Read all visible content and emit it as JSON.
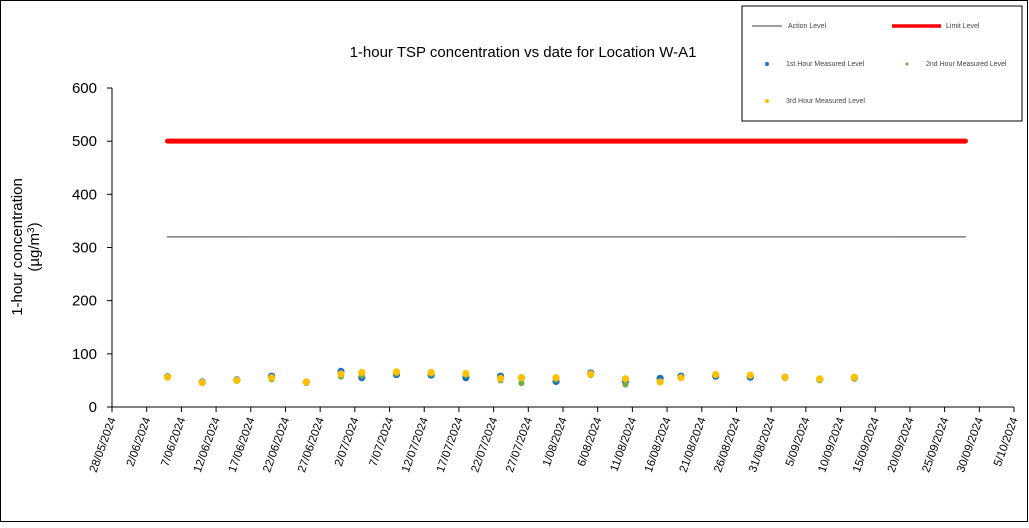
{
  "chart_data": {
    "type": "scatter",
    "title": "1-hour TSP concentration vs date for Location W-A1",
    "ylabel_line1": "1-hour concentration",
    "ylabel_line2": "(µg/m",
    "ylabel_sup": "3",
    "ylabel_close": ")",
    "ylim": [
      0,
      600
    ],
    "yticks": [
      "0",
      "100",
      "200",
      "300",
      "400",
      "500",
      "600"
    ],
    "xlim": [
      "2024-05-28",
      "2024-10-05"
    ],
    "xticks": [
      "28/05/2024",
      "2/06/2024",
      "7/06/2024",
      "12/06/2024",
      "17/06/2024",
      "22/06/2024",
      "27/06/2024",
      "2/07/2024",
      "7/07/2024",
      "12/07/2024",
      "17/07/2024",
      "22/07/2024",
      "27/07/2024",
      "1/08/2024",
      "6/08/2024",
      "11/08/2024",
      "16/08/2024",
      "21/08/2024",
      "26/08/2024",
      "31/08/2024",
      "5/09/2024",
      "10/09/2024",
      "15/09/2024",
      "20/09/2024",
      "25/09/2024",
      "30/09/2024",
      "5/10/2024"
    ],
    "grid": false,
    "legend_position": "top-right",
    "lines": [
      {
        "name": "Action Level",
        "color": "#7f7f7f",
        "value": 320,
        "x_start": "2024-06-05",
        "x_end": "2024-09-28"
      },
      {
        "name": "Limit Level",
        "color": "#ff0000",
        "value": 500,
        "x_start": "2024-06-05",
        "x_end": "2024-09-28"
      }
    ],
    "series": [
      {
        "name": "1st Hour Measured Level",
        "color": "#1f6fc0",
        "points": [
          {
            "x": "2024-06-05",
            "y": 57
          },
          {
            "x": "2024-06-10",
            "y": 47
          },
          {
            "x": "2024-06-15",
            "y": 51
          },
          {
            "x": "2024-06-20",
            "y": 58
          },
          {
            "x": "2024-06-25",
            "y": 47
          },
          {
            "x": "2024-06-30",
            "y": 67
          },
          {
            "x": "2024-07-03",
            "y": 55
          },
          {
            "x": "2024-07-08",
            "y": 61
          },
          {
            "x": "2024-07-13",
            "y": 60
          },
          {
            "x": "2024-07-18",
            "y": 55
          },
          {
            "x": "2024-07-23",
            "y": 58
          },
          {
            "x": "2024-07-26",
            "y": 55
          },
          {
            "x": "2024-07-31",
            "y": 48
          },
          {
            "x": "2024-08-05",
            "y": 64
          },
          {
            "x": "2024-08-10",
            "y": 48
          },
          {
            "x": "2024-08-15",
            "y": 54
          },
          {
            "x": "2024-08-18",
            "y": 58
          },
          {
            "x": "2024-08-23",
            "y": 58
          },
          {
            "x": "2024-08-28",
            "y": 56
          },
          {
            "x": "2024-09-02",
            "y": 56
          },
          {
            "x": "2024-09-07",
            "y": 52
          },
          {
            "x": "2024-09-12",
            "y": 55
          }
        ]
      },
      {
        "name": "2nd Hour Measured Level",
        "color": "#70ad47",
        "points": [
          {
            "x": "2024-06-05",
            "y": 55
          },
          {
            "x": "2024-06-10",
            "y": 45
          },
          {
            "x": "2024-06-15",
            "y": 49
          },
          {
            "x": "2024-06-20",
            "y": 52
          },
          {
            "x": "2024-06-25",
            "y": 45
          },
          {
            "x": "2024-06-30",
            "y": 57
          },
          {
            "x": "2024-07-03",
            "y": 59
          },
          {
            "x": "2024-07-08",
            "y": 63
          },
          {
            "x": "2024-07-13",
            "y": 62
          },
          {
            "x": "2024-07-18",
            "y": 60
          },
          {
            "x": "2024-07-23",
            "y": 50
          },
          {
            "x": "2024-07-26",
            "y": 45
          },
          {
            "x": "2024-07-31",
            "y": 52
          },
          {
            "x": "2024-08-05",
            "y": 60
          },
          {
            "x": "2024-08-10",
            "y": 42
          },
          {
            "x": "2024-08-15",
            "y": 48
          },
          {
            "x": "2024-08-18",
            "y": 55
          },
          {
            "x": "2024-08-23",
            "y": 60
          },
          {
            "x": "2024-08-28",
            "y": 58
          },
          {
            "x": "2024-09-02",
            "y": 54
          },
          {
            "x": "2024-09-07",
            "y": 50
          },
          {
            "x": "2024-09-12",
            "y": 53
          }
        ]
      },
      {
        "name": "3rd Hour Measured Level",
        "color": "#ffc000",
        "points": [
          {
            "x": "2024-06-05",
            "y": 56
          },
          {
            "x": "2024-06-10",
            "y": 46
          },
          {
            "x": "2024-06-15",
            "y": 50
          },
          {
            "x": "2024-06-20",
            "y": 55
          },
          {
            "x": "2024-06-25",
            "y": 47
          },
          {
            "x": "2024-06-30",
            "y": 62
          },
          {
            "x": "2024-07-03",
            "y": 65
          },
          {
            "x": "2024-07-08",
            "y": 66
          },
          {
            "x": "2024-07-13",
            "y": 65
          },
          {
            "x": "2024-07-18",
            "y": 63
          },
          {
            "x": "2024-07-23",
            "y": 54
          },
          {
            "x": "2024-07-26",
            "y": 55
          },
          {
            "x": "2024-07-31",
            "y": 55
          },
          {
            "x": "2024-08-05",
            "y": 62
          },
          {
            "x": "2024-08-10",
            "y": 53
          },
          {
            "x": "2024-08-15",
            "y": 47
          },
          {
            "x": "2024-08-18",
            "y": 55
          },
          {
            "x": "2024-08-23",
            "y": 61
          },
          {
            "x": "2024-08-28",
            "y": 60
          },
          {
            "x": "2024-09-02",
            "y": 56
          },
          {
            "x": "2024-09-07",
            "y": 53
          },
          {
            "x": "2024-09-12",
            "y": 56
          }
        ]
      }
    ]
  }
}
